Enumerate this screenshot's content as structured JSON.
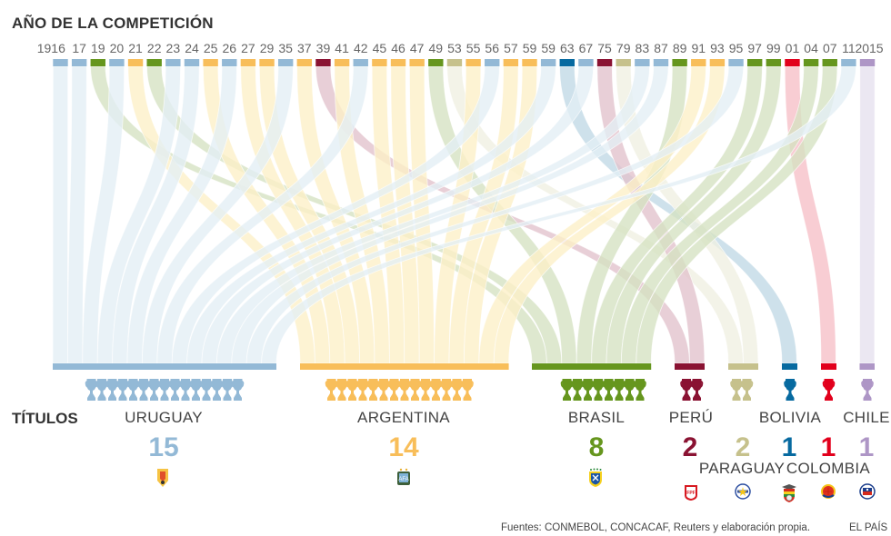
{
  "header": {
    "title": "AÑO DE LA COMPETICIÓN"
  },
  "labels": {
    "titulos": "TÍTULOS"
  },
  "footer": {
    "sources": "Fuentes: CONMEBOL, CONCACAF, Reuters y elaboración propia.",
    "brand": "EL PAÍS"
  },
  "chart_data": {
    "type": "alluvial",
    "title": "AÑO DE LA COMPETICIÓN",
    "description": "Copa América winners by year, flowing to total titles per country",
    "years": [
      {
        "label": "1916",
        "winner": "uruguay"
      },
      {
        "label": "17",
        "winner": "uruguay"
      },
      {
        "label": "19",
        "winner": "brasil"
      },
      {
        "label": "20",
        "winner": "uruguay"
      },
      {
        "label": "21",
        "winner": "argentina"
      },
      {
        "label": "22",
        "winner": "brasil"
      },
      {
        "label": "23",
        "winner": "uruguay"
      },
      {
        "label": "24",
        "winner": "uruguay"
      },
      {
        "label": "25",
        "winner": "argentina"
      },
      {
        "label": "26",
        "winner": "uruguay"
      },
      {
        "label": "27",
        "winner": "argentina"
      },
      {
        "label": "29",
        "winner": "argentina"
      },
      {
        "label": "35",
        "winner": "uruguay"
      },
      {
        "label": "37",
        "winner": "argentina"
      },
      {
        "label": "39",
        "winner": "peru"
      },
      {
        "label": "41",
        "winner": "argentina"
      },
      {
        "label": "42",
        "winner": "uruguay"
      },
      {
        "label": "45",
        "winner": "argentina"
      },
      {
        "label": "46",
        "winner": "argentina"
      },
      {
        "label": "47",
        "winner": "argentina"
      },
      {
        "label": "49",
        "winner": "brasil"
      },
      {
        "label": "53",
        "winner": "paraguay"
      },
      {
        "label": "55",
        "winner": "argentina"
      },
      {
        "label": "56",
        "winner": "uruguay"
      },
      {
        "label": "57",
        "winner": "argentina"
      },
      {
        "label": "59",
        "winner": "argentina"
      },
      {
        "label": "59",
        "winner": "uruguay"
      },
      {
        "label": "63",
        "winner": "bolivia"
      },
      {
        "label": "67",
        "winner": "uruguay"
      },
      {
        "label": "75",
        "winner": "peru"
      },
      {
        "label": "79",
        "winner": "paraguay"
      },
      {
        "label": "83",
        "winner": "uruguay"
      },
      {
        "label": "87",
        "winner": "uruguay"
      },
      {
        "label": "89",
        "winner": "brasil"
      },
      {
        "label": "91",
        "winner": "argentina"
      },
      {
        "label": "93",
        "winner": "argentina"
      },
      {
        "label": "95",
        "winner": "uruguay"
      },
      {
        "label": "97",
        "winner": "brasil"
      },
      {
        "label": "99",
        "winner": "brasil"
      },
      {
        "label": "01",
        "winner": "colombia"
      },
      {
        "label": "04",
        "winner": "brasil"
      },
      {
        "label": "07",
        "winner": "brasil"
      },
      {
        "label": "11",
        "winner": "uruguay"
      },
      {
        "label": "2015",
        "winner": "chile"
      }
    ],
    "countries": [
      {
        "id": "uruguay",
        "name": "URUGUAY",
        "titles": 15,
        "count_label": "15",
        "color": "#93b9d6",
        "light": "#e3eef5",
        "crest": "uruguay-crest"
      },
      {
        "id": "argentina",
        "name": "ARGENTINA",
        "titles": 14,
        "count_label": "14",
        "color": "#f8be5a",
        "light": "#fdf0c6",
        "crest": "argentina-crest"
      },
      {
        "id": "brasil",
        "name": "BRASIL",
        "titles": 8,
        "count_label": "8",
        "color": "#66961e",
        "light": "#d5e2c2",
        "crest": "brasil-crest"
      },
      {
        "id": "peru",
        "name": "PERÚ",
        "titles": 2,
        "count_label": "2",
        "color": "#8a1232",
        "light": "#e1c2cc",
        "crest": "peru-crest"
      },
      {
        "id": "paraguay",
        "name": "PARAGUAY",
        "titles": 2,
        "count_label": "2",
        "color": "#c6c18c",
        "light": "#efefe2",
        "crest": "paraguay-crest"
      },
      {
        "id": "bolivia",
        "name": "BOLIVIA",
        "titles": 1,
        "count_label": "1",
        "color": "#076aa0",
        "light": "#c0d9e6",
        "crest": "bolivia-crest"
      },
      {
        "id": "colombia",
        "name": "COLOMBIA",
        "titles": 1,
        "count_label": "1",
        "color": "#e2001c",
        "light": "#f6bfc6",
        "crest": "colombia-crest"
      },
      {
        "id": "chile",
        "name": "CHILE",
        "titles": 1,
        "count_label": "1",
        "color": "#ae96c6",
        "light": "#e6e0ee",
        "crest": "chile-crest"
      }
    ]
  }
}
